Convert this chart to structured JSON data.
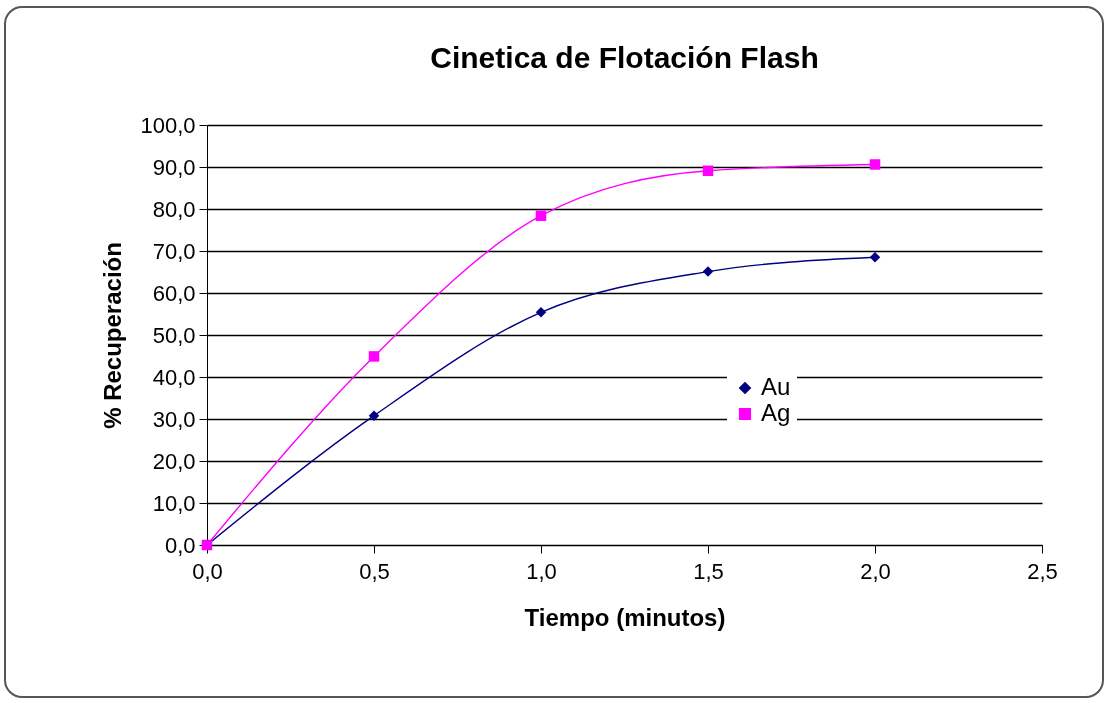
{
  "chart_data": {
    "type": "line",
    "title": "Cinetica de Flotación Flash",
    "xlabel": "Tiempo (minutos)",
    "ylabel": "% Recuperación",
    "x": [
      0,
      0.5,
      1,
      1.5,
      2
    ],
    "series": [
      {
        "name": "Au",
        "color": "#000080",
        "marker": "diamond",
        "values": [
          0,
          30.8,
          55.4,
          65.1,
          68.5
        ]
      },
      {
        "name": "Ag",
        "color": "#ff00ff",
        "marker": "square",
        "values": [
          0,
          44.9,
          78.4,
          89.1,
          90.6
        ]
      }
    ],
    "xlim": [
      0,
      2.5
    ],
    "xticks": [
      {
        "value": 0,
        "label": "0,0"
      },
      {
        "value": 0.5,
        "label": "0,5"
      },
      {
        "value": 1,
        "label": "1,0"
      },
      {
        "value": 1.5,
        "label": "1,5"
      },
      {
        "value": 2,
        "label": "2,0"
      },
      {
        "value": 2.5,
        "label": "2,5"
      }
    ],
    "ylim": [
      0,
      100
    ],
    "yticks": [
      {
        "value": 0,
        "label": "0,0"
      },
      {
        "value": 10,
        "label": "10,0"
      },
      {
        "value": 20,
        "label": "20,0"
      },
      {
        "value": 30,
        "label": "30,0"
      },
      {
        "value": 40,
        "label": "40,0"
      },
      {
        "value": 50,
        "label": "50,0"
      },
      {
        "value": 60,
        "label": "60,0"
      },
      {
        "value": 70,
        "label": "70,0"
      },
      {
        "value": 80,
        "label": "80,0"
      },
      {
        "value": 90,
        "label": "90,0"
      },
      {
        "value": 100,
        "label": "100,0"
      }
    ],
    "grid": "y",
    "legend": "right",
    "line_style": "solid"
  }
}
